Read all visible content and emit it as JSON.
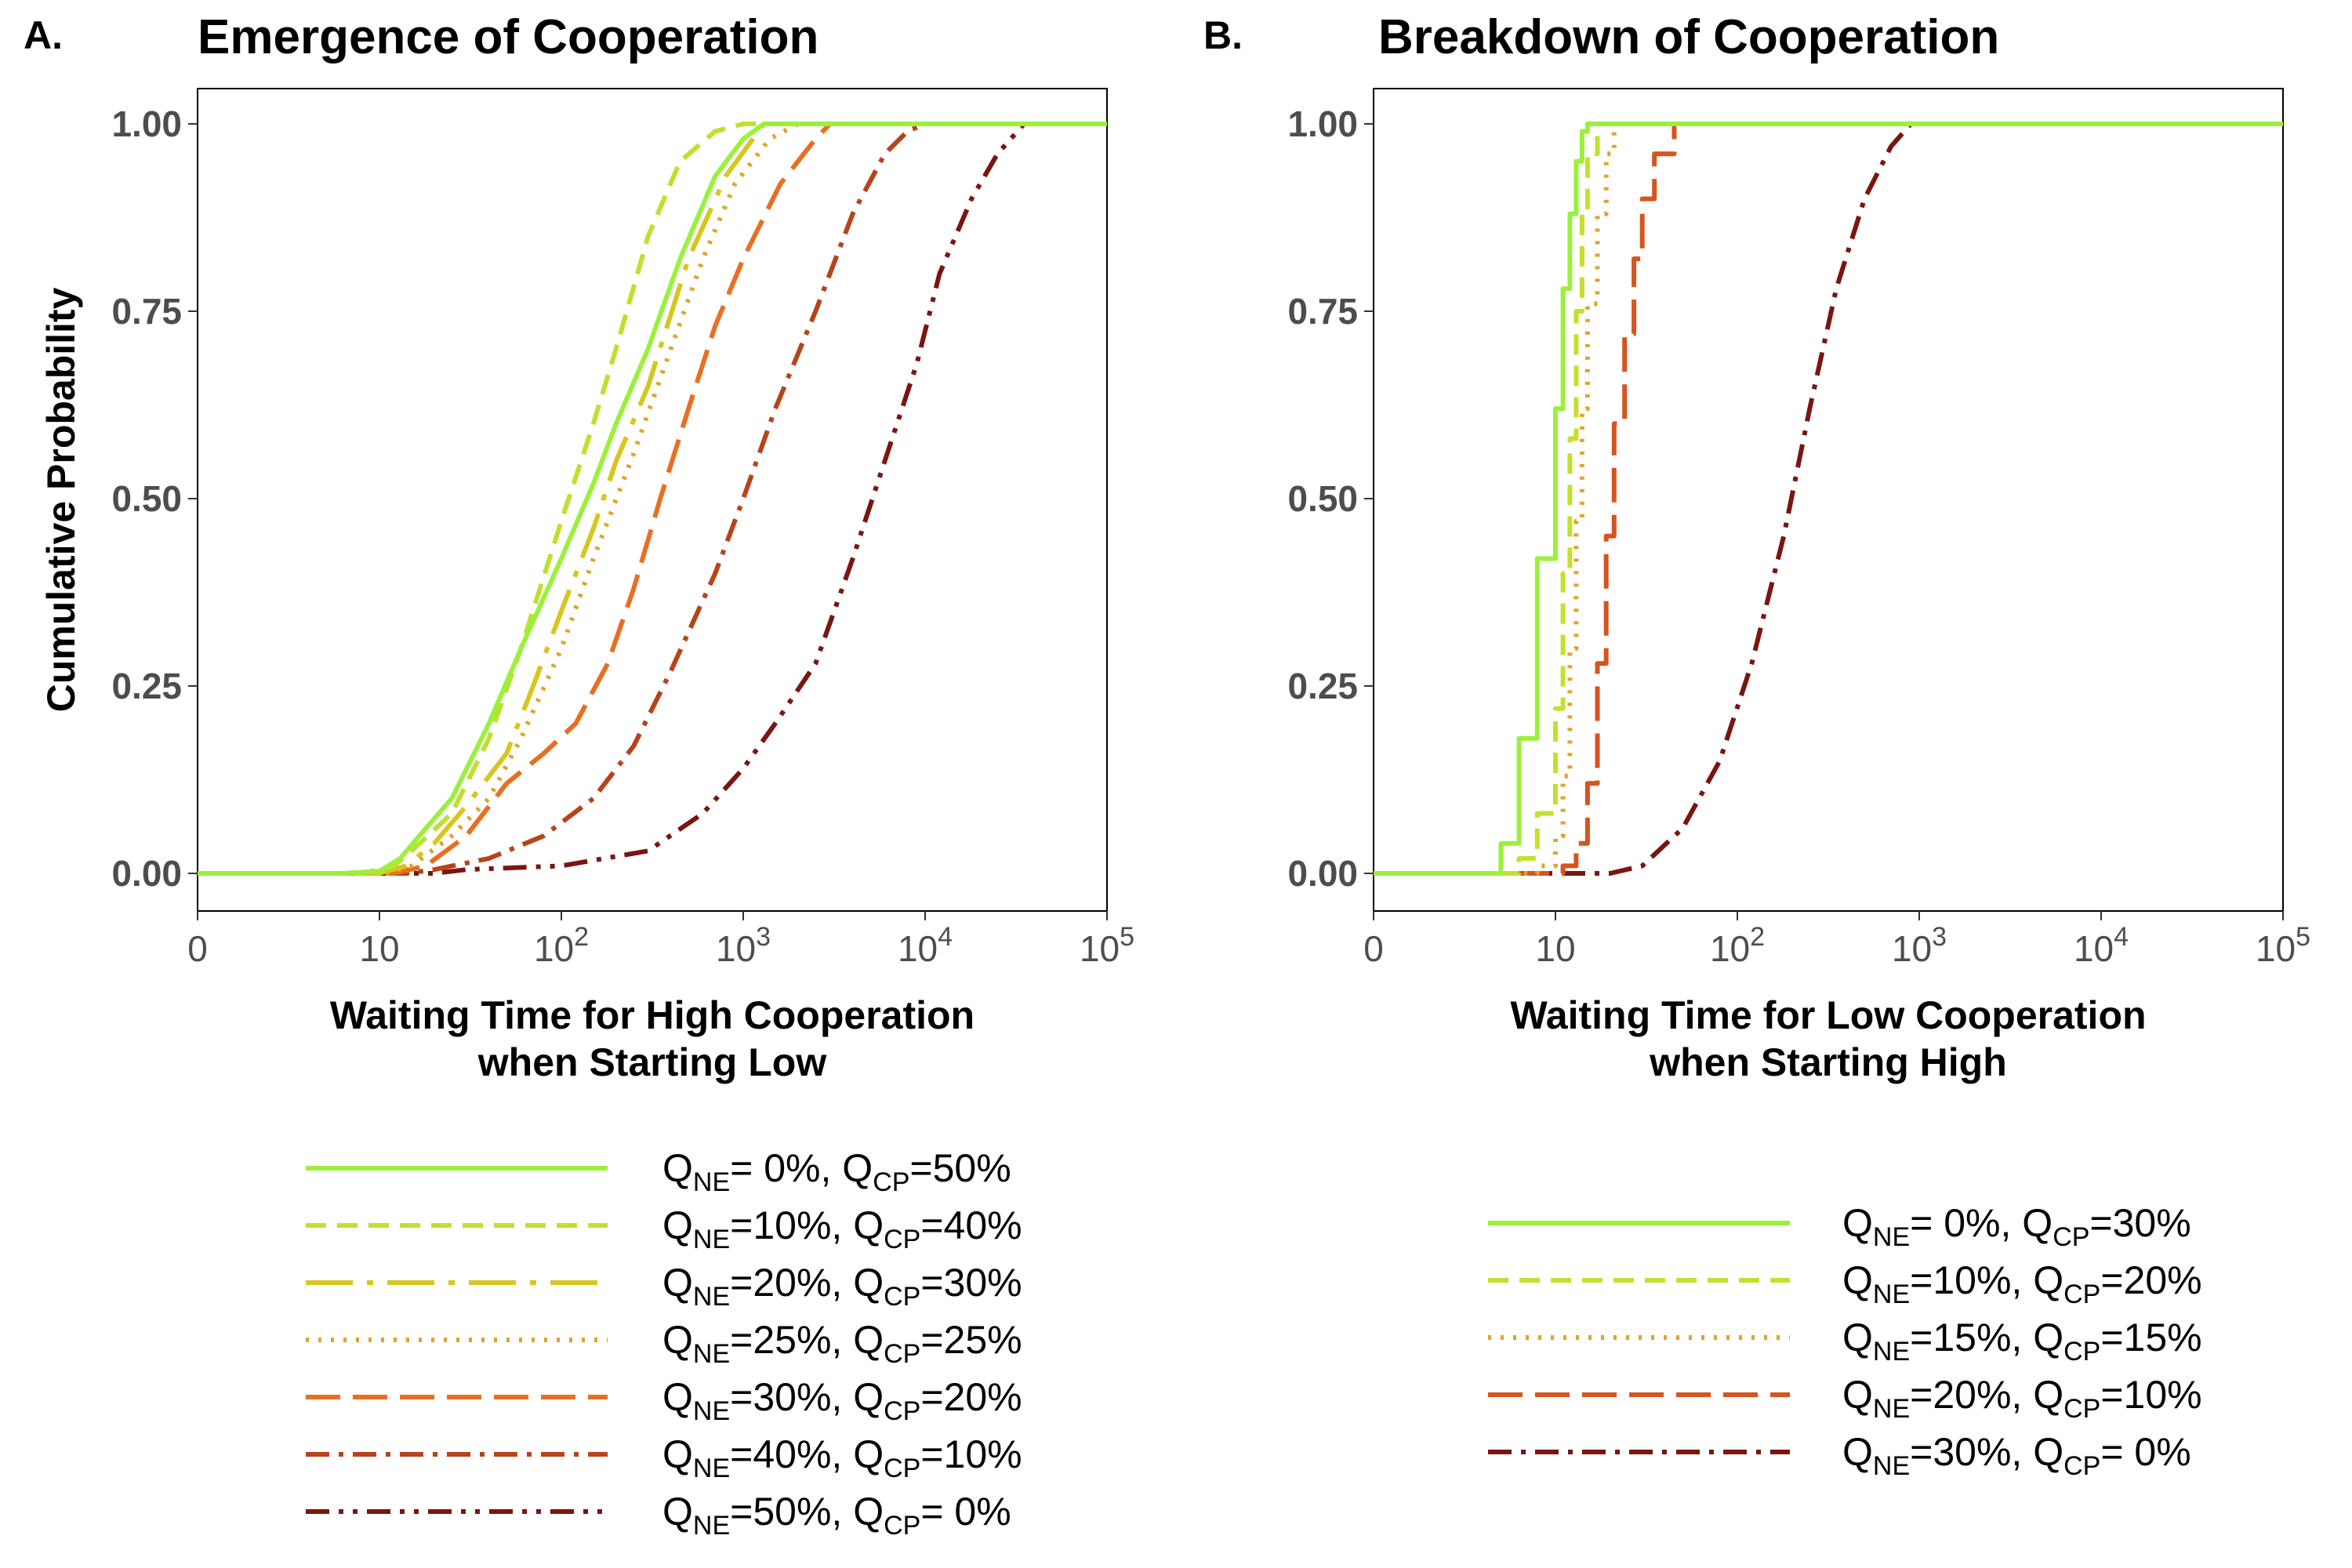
{
  "chart_data": [
    {
      "type": "line",
      "panel": "A.",
      "title": "Emergence of Cooperation",
      "xlabel_lines": [
        "Waiting Time for High Cooperation",
        "when Starting Low"
      ],
      "ylabel": "Cumulative Probability",
      "x_scale": "log (with 0)",
      "xlim": [
        0,
        100000
      ],
      "ylim": [
        0,
        1
      ],
      "x_ticks": [
        {
          "value": 0,
          "base": "0",
          "exp": ""
        },
        {
          "value": 10,
          "base": "10",
          "exp": ""
        },
        {
          "value": 100,
          "base": "10",
          "exp": "2"
        },
        {
          "value": 1000,
          "base": "10",
          "exp": "3"
        },
        {
          "value": 10000,
          "base": "10",
          "exp": "4"
        },
        {
          "value": 100000,
          "base": "10",
          "exp": "5"
        }
      ],
      "y_ticks": [
        "0.00",
        "0.25",
        "0.50",
        "0.75",
        "1.00"
      ],
      "y_tick_values": [
        0,
        0.25,
        0.5,
        0.75,
        1
      ],
      "grid": false,
      "legend_position": "bottom",
      "series": [
        {
          "legend": {
            "ne": "= 0%,",
            "cp": "=50%"
          },
          "color": "#9bf03c",
          "dash": "solid",
          "x": [
            0,
            8,
            10,
            13,
            18,
            25,
            40,
            60,
            100,
            150,
            200,
            300,
            450,
            700,
            1000,
            1300,
            100000
          ],
          "y": [
            0,
            0,
            0.003,
            0.02,
            0.06,
            0.1,
            0.2,
            0.3,
            0.42,
            0.52,
            0.6,
            0.7,
            0.82,
            0.93,
            0.98,
            1.0,
            1.0
          ]
        },
        {
          "legend": {
            "ne": "=10%,",
            "cp": "=40%"
          },
          "color": "#bfe02e",
          "dash": "dashed",
          "x": [
            0,
            9,
            12,
            15,
            25,
            40,
            60,
            100,
            150,
            200,
            300,
            450,
            700,
            1000,
            100000
          ],
          "y": [
            0,
            0,
            0.01,
            0.03,
            0.08,
            0.18,
            0.3,
            0.47,
            0.6,
            0.7,
            0.85,
            0.95,
            0.99,
            1.0,
            1.0
          ]
        },
        {
          "legend": {
            "ne": "=20%,",
            "cp": "=30%"
          },
          "color": "#d6c61f",
          "dash": "longdash-dot",
          "x": [
            0,
            10,
            14,
            20,
            30,
            50,
            70,
            100,
            150,
            200,
            300,
            500,
            800,
            1300,
            100000
          ],
          "y": [
            0,
            0,
            0.01,
            0.04,
            0.09,
            0.16,
            0.25,
            0.35,
            0.46,
            0.55,
            0.65,
            0.82,
            0.93,
            1.0,
            1.0
          ]
        },
        {
          "legend": {
            "ne": "=25%,",
            "cp": "=25%"
          },
          "color": "#e2a22a",
          "dash": "dotted",
          "x": [
            0,
            11,
            15,
            25,
            40,
            60,
            100,
            150,
            250,
            400,
            600,
            900,
            1400,
            2000,
            100000
          ],
          "y": [
            0,
            0,
            0.01,
            0.05,
            0.1,
            0.18,
            0.3,
            0.42,
            0.56,
            0.7,
            0.82,
            0.92,
            0.98,
            1.0,
            1.0
          ]
        },
        {
          "legend": {
            "ne": "=30%,",
            "cp": "=20%"
          },
          "color": "#e86f22",
          "dash": "longdash",
          "x": [
            0,
            12,
            18,
            30,
            50,
            80,
            120,
            180,
            250,
            350,
            500,
            700,
            1000,
            1600,
            2500,
            3000,
            100000
          ],
          "y": [
            0,
            0,
            0.01,
            0.05,
            0.12,
            0.16,
            0.2,
            0.28,
            0.38,
            0.5,
            0.62,
            0.73,
            0.82,
            0.92,
            0.98,
            1.0,
            1.0
          ]
        },
        {
          "legend": {
            "ne": "=40%,",
            "cp": "=10%"
          },
          "color": "#b8431b",
          "dash": "dash-dot",
          "x": [
            0,
            14,
            20,
            40,
            80,
            150,
            250,
            400,
            700,
            1000,
            1500,
            2500,
            4000,
            6000,
            8000,
            10000,
            100000
          ],
          "y": [
            0,
            0,
            0.005,
            0.02,
            0.05,
            0.1,
            0.17,
            0.27,
            0.4,
            0.5,
            0.62,
            0.75,
            0.88,
            0.96,
            0.99,
            1.0,
            1.0
          ]
        },
        {
          "legend": {
            "ne": "=50%,",
            "cp": "= 0%"
          },
          "color": "#7a1510",
          "dash": "dash-dot-dot",
          "x": [
            0,
            20,
            30,
            100,
            300,
            600,
            1000,
            1500,
            2500,
            4000,
            6000,
            9000,
            12000,
            18000,
            25000,
            35000,
            100000
          ],
          "y": [
            0,
            0,
            0.005,
            0.01,
            0.03,
            0.08,
            0.14,
            0.2,
            0.28,
            0.42,
            0.55,
            0.68,
            0.8,
            0.9,
            0.96,
            1.0,
            1.0
          ]
        }
      ]
    },
    {
      "type": "line",
      "panel": "B.",
      "title": "Breakdown of Cooperation",
      "xlabel_lines": [
        "Waiting Time for Low Cooperation",
        "when Starting High"
      ],
      "ylabel": "",
      "x_scale": "log (with 0)",
      "xlim": [
        0,
        100000
      ],
      "ylim": [
        0,
        1
      ],
      "x_ticks": [
        {
          "value": 0,
          "base": "0",
          "exp": ""
        },
        {
          "value": 10,
          "base": "10",
          "exp": ""
        },
        {
          "value": 100,
          "base": "10",
          "exp": "2"
        },
        {
          "value": 1000,
          "base": "10",
          "exp": "3"
        },
        {
          "value": 10000,
          "base": "10",
          "exp": "4"
        },
        {
          "value": 100000,
          "base": "10",
          "exp": "5"
        }
      ],
      "y_ticks": [
        "0.00",
        "0.25",
        "0.50",
        "0.75",
        "1.00"
      ],
      "y_tick_values": [
        0,
        0.25,
        0.5,
        0.75,
        1
      ],
      "grid": false,
      "legend_position": "bottom",
      "series": [
        {
          "legend": {
            "ne": "= 0%,",
            "cp": "=30%"
          },
          "color": "#9bf03c",
          "dash": "solid",
          "step": true,
          "x": [
            0,
            6,
            7,
            8,
            9,
            10,
            11,
            12,
            13,
            14,
            15,
            100000
          ],
          "y": [
            0,
            0,
            0.04,
            0.18,
            0.42,
            0.62,
            0.78,
            0.88,
            0.95,
            0.99,
            1.0,
            1.0
          ]
        },
        {
          "legend": {
            "ne": "=10%,",
            "cp": "=20%"
          },
          "color": "#c6df2c",
          "dash": "dashed",
          "step": true,
          "x": [
            0,
            7,
            8,
            9,
            10,
            11,
            12,
            13,
            14,
            15,
            17,
            100000
          ],
          "y": [
            0,
            0,
            0.02,
            0.08,
            0.22,
            0.4,
            0.58,
            0.75,
            0.88,
            0.96,
            1.0,
            1.0
          ]
        },
        {
          "legend": {
            "ne": "=15%,",
            "cp": "=15%"
          },
          "color": "#e2a22a",
          "dash": "dotted",
          "step": true,
          "x": [
            0,
            8,
            9,
            10,
            11,
            12,
            13,
            14,
            15,
            17,
            19,
            21,
            100000
          ],
          "y": [
            0,
            0,
            0.01,
            0.05,
            0.13,
            0.3,
            0.47,
            0.62,
            0.76,
            0.88,
            0.96,
            1.0,
            1.0
          ]
        },
        {
          "legend": {
            "ne": "=20%,",
            "cp": "=10%"
          },
          "color": "#d5541f",
          "dash": "longdash",
          "step": true,
          "x": [
            0,
            10,
            11,
            13,
            15,
            17,
            19,
            21,
            24,
            27,
            30,
            35,
            45,
            100000
          ],
          "y": [
            0,
            0,
            0.01,
            0.04,
            0.12,
            0.28,
            0.45,
            0.6,
            0.72,
            0.82,
            0.9,
            0.96,
            1.0,
            1.0
          ]
        },
        {
          "legend": {
            "ne": "=30%,",
            "cp": "= 0%"
          },
          "color": "#7a1510",
          "dash": "dash-dot",
          "x": [
            0,
            20,
            30,
            50,
            80,
            120,
            180,
            250,
            350,
            500,
            700,
            900,
            100000
          ],
          "y": [
            0,
            0,
            0.01,
            0.06,
            0.15,
            0.28,
            0.45,
            0.62,
            0.78,
            0.9,
            0.97,
            1.0,
            1.0
          ]
        }
      ]
    }
  ],
  "legend_labels": {
    "q": "Q",
    "ne": "NE",
    "cp": "CP"
  }
}
